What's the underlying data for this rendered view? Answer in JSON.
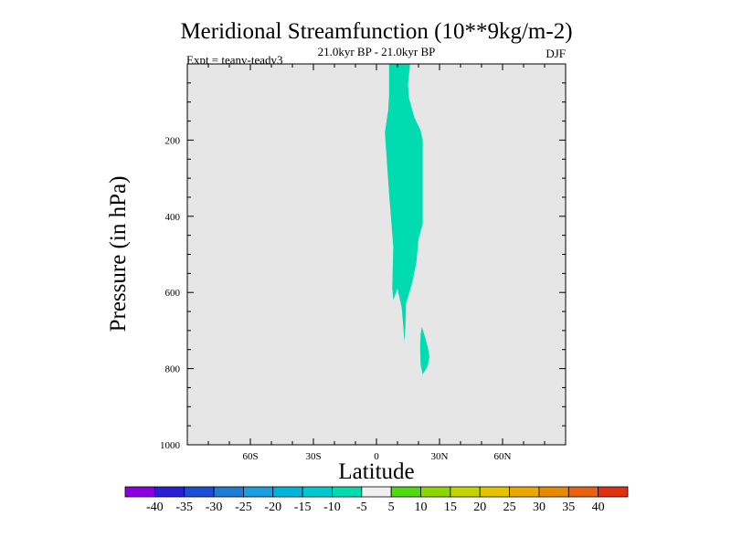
{
  "chart_data": {
    "type": "contour",
    "title": "Meridional Streamfunction (10**9kg/m-2)",
    "subtitle": "21.0kyr BP - 21.0kyr BP",
    "left_label": "Expt = teanv-teadv3",
    "right_label": "DJF",
    "xlabel": "Latitude",
    "ylabel": "Pressure (in hPa)",
    "xlim": [
      -90,
      90
    ],
    "ylim": [
      0,
      1000
    ],
    "x_ticks": [
      {
        "value": -60,
        "label": "60S"
      },
      {
        "value": -30,
        "label": "30S"
      },
      {
        "value": 0,
        "label": "0"
      },
      {
        "value": 30,
        "label": "30N"
      },
      {
        "value": 60,
        "label": "60N"
      }
    ],
    "y_ticks": [
      {
        "value": 200,
        "label": "200"
      },
      {
        "value": 400,
        "label": "400"
      },
      {
        "value": 600,
        "label": "600"
      },
      {
        "value": 800,
        "label": "800"
      },
      {
        "value": 1000,
        "label": "1000"
      }
    ],
    "background_fill": "#e6e6e6",
    "shaded_regions": [
      {
        "level": "-10 to -5",
        "color": "#00dbb0",
        "polygon": [
          [
            6,
            0
          ],
          [
            16,
            0
          ],
          [
            15,
            55
          ],
          [
            15.5,
            90
          ],
          [
            18,
            140
          ],
          [
            21,
            175
          ],
          [
            22,
            200
          ],
          [
            22,
            420
          ],
          [
            20,
            460
          ],
          [
            19,
            520
          ],
          [
            17,
            575
          ],
          [
            14,
            630
          ],
          [
            13.8,
            690
          ],
          [
            13.2,
            730
          ],
          [
            12.8,
            690
          ],
          [
            12,
            640
          ],
          [
            10,
            590
          ],
          [
            8,
            620
          ],
          [
            7.5,
            590
          ],
          [
            8,
            480
          ],
          [
            6,
            340
          ],
          [
            4,
            180
          ],
          [
            5.6,
            120
          ],
          [
            6,
            80
          ]
        ]
      },
      {
        "level": "-10 to -5",
        "color": "#00dbb0",
        "polygon": [
          [
            21.6,
            690
          ],
          [
            23,
            715
          ],
          [
            24.5,
            745
          ],
          [
            25.2,
            770
          ],
          [
            24.2,
            795
          ],
          [
            22,
            815
          ],
          [
            21,
            790
          ],
          [
            20.8,
            740
          ],
          [
            21,
            710
          ]
        ]
      }
    ],
    "colorbar": {
      "labels": [
        "-40",
        "-35",
        "-30",
        "-25",
        "-20",
        "-15",
        "-10",
        "-5",
        "5",
        "10",
        "15",
        "20",
        "25",
        "30",
        "35",
        "40"
      ],
      "colors": [
        "#8a00e0",
        "#2b1fd6",
        "#1a4ed6",
        "#1e7cd6",
        "#1a9ee0",
        "#00b4dc",
        "#00c8d0",
        "#00dbb0",
        "#f0f0f0",
        "#50d810",
        "#8ed600",
        "#c4d400",
        "#e4c400",
        "#e8a800",
        "#e88a00",
        "#e86010",
        "#e03010"
      ]
    }
  }
}
